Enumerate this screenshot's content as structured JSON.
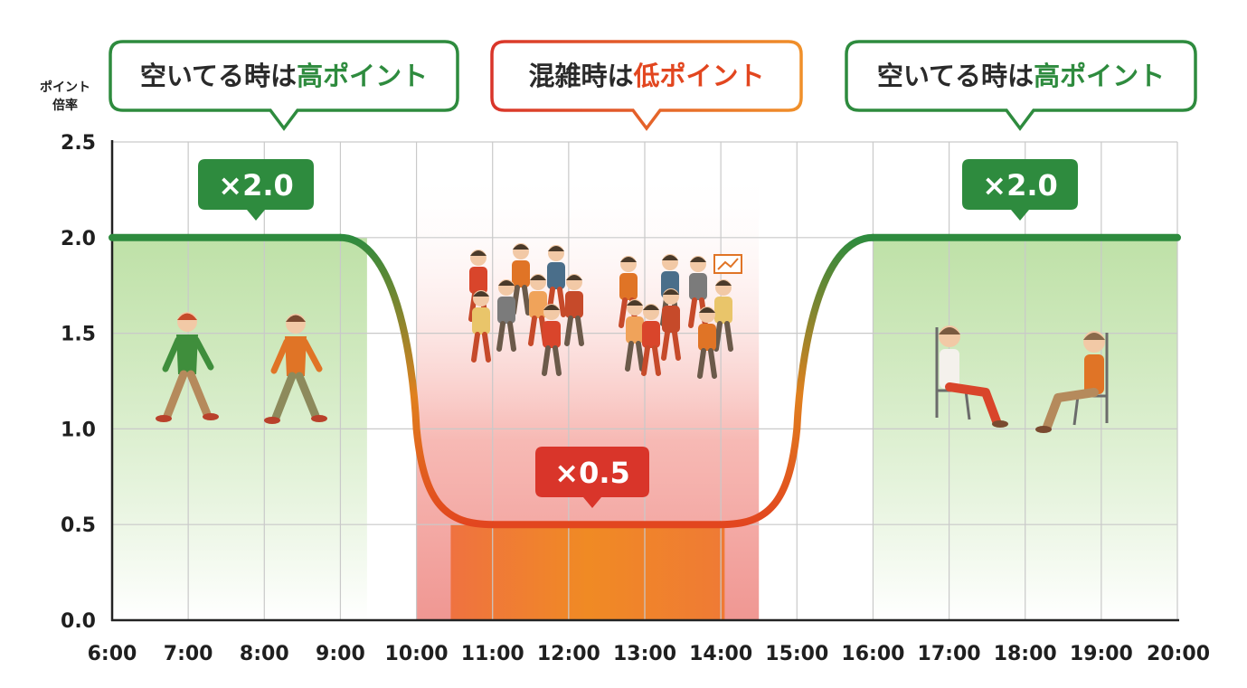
{
  "chart_data": {
    "type": "line",
    "x": [
      "6:00",
      "7:00",
      "8:00",
      "9:00",
      "10:00",
      "11:00",
      "12:00",
      "13:00",
      "14:00",
      "15:00",
      "16:00",
      "17:00",
      "18:00",
      "19:00",
      "20:00"
    ],
    "series": [
      {
        "values": [
          2.0,
          2.0,
          2.0,
          2.0,
          1.0,
          0.5,
          0.5,
          0.5,
          0.5,
          1.0,
          2.0,
          2.0,
          2.0,
          2.0,
          2.0
        ]
      }
    ],
    "ylabel": "ポイント\n倍率",
    "ylabel_lines": [
      "ポイント",
      "倍率"
    ],
    "yticks": [
      "0.0",
      "0.5",
      "1.0",
      "1.5",
      "2.0",
      "2.5"
    ],
    "ylim": [
      0,
      2.5
    ],
    "xlim": [
      "6:00",
      "20:00"
    ],
    "grid": true,
    "annotations": {
      "callouts": [
        {
          "prefix": "空いてる時は",
          "highlight": "高ポイント",
          "color": "#2e8b3e"
        },
        {
          "prefix": "混雑時は",
          "highlight": "低ポイント",
          "color": "#e2461f"
        },
        {
          "prefix": "空いてる時は",
          "highlight": "高ポイント",
          "color": "#2e8b3e"
        }
      ],
      "badges": [
        {
          "label": "×2.0",
          "color": "#2e8b3e"
        },
        {
          "label": "×0.5",
          "color": "#d9352a"
        },
        {
          "label": "×2.0",
          "color": "#2e8b3e"
        }
      ]
    },
    "colors": {
      "high": "#2e8b3e",
      "low": "#e2461f",
      "mid": "#f08a24"
    },
    "illustrations": [
      "walking-people",
      "crowd",
      "seated-people"
    ]
  }
}
